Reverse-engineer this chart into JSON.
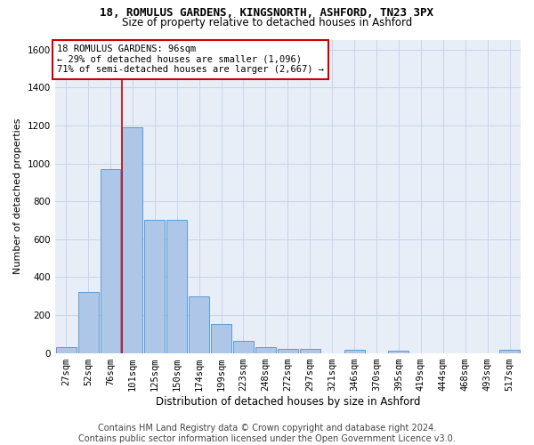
{
  "title1": "18, ROMULUS GARDENS, KINGSNORTH, ASHFORD, TN23 3PX",
  "title2": "Size of property relative to detached houses in Ashford",
  "xlabel": "Distribution of detached houses by size in Ashford",
  "ylabel": "Number of detached properties",
  "footer1": "Contains HM Land Registry data © Crown copyright and database right 2024.",
  "footer2": "Contains public sector information licensed under the Open Government Licence v3.0.",
  "annotation_line1": "18 ROMULUS GARDENS: 96sqm",
  "annotation_line2": "← 29% of detached houses are smaller (1,096)",
  "annotation_line3": "71% of semi-detached houses are larger (2,667) →",
  "bar_labels": [
    "27sqm",
    "52sqm",
    "76sqm",
    "101sqm",
    "125sqm",
    "150sqm",
    "174sqm",
    "199sqm",
    "223sqm",
    "248sqm",
    "272sqm",
    "297sqm",
    "321sqm",
    "346sqm",
    "370sqm",
    "395sqm",
    "419sqm",
    "444sqm",
    "468sqm",
    "493sqm",
    "517sqm"
  ],
  "bar_values": [
    30,
    320,
    970,
    1190,
    700,
    700,
    300,
    155,
    65,
    30,
    20,
    20,
    0,
    15,
    0,
    10,
    0,
    0,
    0,
    0,
    15
  ],
  "bar_color": "#aec6e8",
  "bar_edge_color": "#5b9bd5",
  "vline_color": "#cc0000",
  "vline_bar_index": 3,
  "ylim": [
    0,
    1650
  ],
  "yticks": [
    0,
    200,
    400,
    600,
    800,
    1000,
    1200,
    1400,
    1600
  ],
  "grid_color": "#c8d4e8",
  "bg_color": "#e8eef8",
  "annotation_box_color": "#cc0000",
  "title1_fontsize": 9,
  "title2_fontsize": 8.5,
  "xlabel_fontsize": 8.5,
  "ylabel_fontsize": 8,
  "tick_fontsize": 7.5,
  "annotation_fontsize": 7.5,
  "footer_fontsize": 7
}
